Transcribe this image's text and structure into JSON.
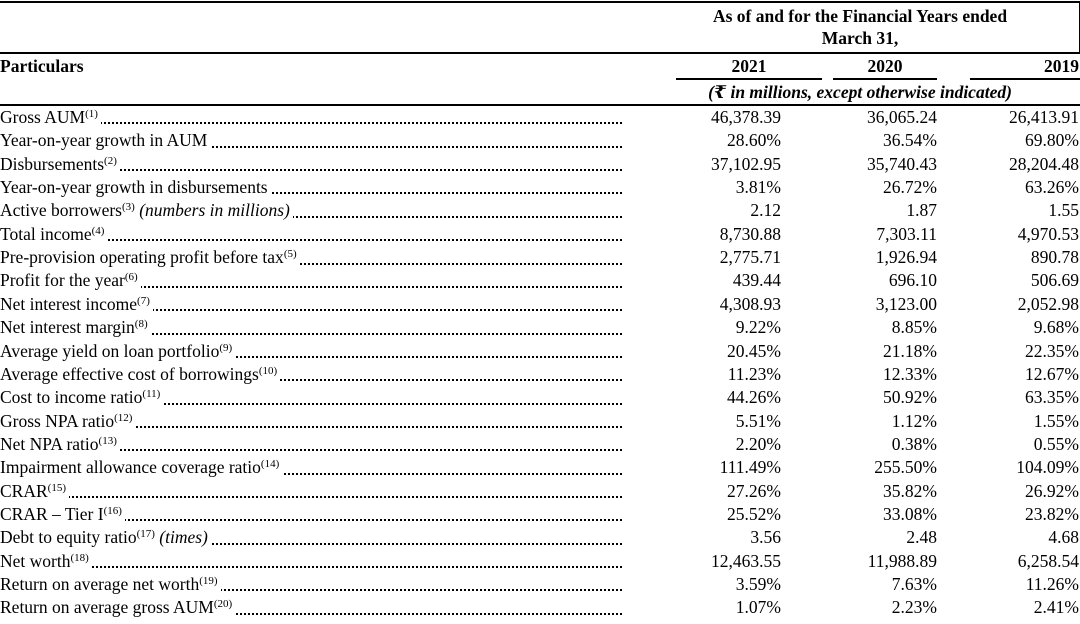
{
  "header": {
    "group_title_line1": "As of and for the Financial Years ended",
    "group_title_line2": "March 31,",
    "particulars_label": "Particulars",
    "years": [
      "2021",
      "2020",
      "2019"
    ],
    "unit_note": "(₹ in millions, except otherwise indicated)"
  },
  "rows": [
    {
      "label": "Gross AUM",
      "note": "(1)",
      "qualifier": "",
      "values": [
        "46,378.39",
        "36,065.24",
        "26,413.91"
      ]
    },
    {
      "label": "Year-on-year growth in AUM",
      "note": "",
      "qualifier": "",
      "values": [
        "28.60%",
        "36.54%",
        "69.80%"
      ]
    },
    {
      "label": "Disbursements",
      "note": "(2)",
      "qualifier": "",
      "values": [
        "37,102.95",
        "35,740.43",
        "28,204.48"
      ]
    },
    {
      "label": "Year-on-year growth in disbursements",
      "note": "",
      "qualifier": "",
      "values": [
        "3.81%",
        "26.72%",
        "63.26%"
      ]
    },
    {
      "label": "Active borrowers",
      "note": "(3)",
      "qualifier": "(numbers in millions)",
      "values": [
        "2.12",
        "1.87",
        "1.55"
      ]
    },
    {
      "label": "Total income",
      "note": "(4)",
      "qualifier": "",
      "values": [
        "8,730.88",
        "7,303.11",
        "4,970.53"
      ]
    },
    {
      "label": "Pre-provision operating profit before tax",
      "note": "(5)",
      "qualifier": "",
      "values": [
        "2,775.71",
        "1,926.94",
        "890.78"
      ]
    },
    {
      "label": "Profit for the year",
      "note": "(6)",
      "qualifier": "",
      "values": [
        "439.44",
        "696.10",
        "506.69"
      ]
    },
    {
      "label": "Net interest income",
      "note": "(7)",
      "qualifier": "",
      "values": [
        "4,308.93",
        "3,123.00",
        "2,052.98"
      ]
    },
    {
      "label": "Net interest margin",
      "note": "(8)",
      "qualifier": "",
      "values": [
        "9.22%",
        "8.85%",
        "9.68%"
      ]
    },
    {
      "label": "Average yield on loan portfolio",
      "note": "(9)",
      "qualifier": "",
      "values": [
        "20.45%",
        "21.18%",
        "22.35%"
      ]
    },
    {
      "label": "Average effective cost of borrowings",
      "note": "(10)",
      "qualifier": "",
      "values": [
        "11.23%",
        "12.33%",
        "12.67%"
      ]
    },
    {
      "label": "Cost to income ratio",
      "note": "(11)",
      "qualifier": "",
      "values": [
        "44.26%",
        "50.92%",
        "63.35%"
      ]
    },
    {
      "label": "Gross NPA ratio",
      "note": "(12)",
      "qualifier": "",
      "values": [
        "5.51%",
        "1.12%",
        "1.55%"
      ]
    },
    {
      "label": "Net NPA ratio",
      "note": "(13)",
      "qualifier": "",
      "values": [
        "2.20%",
        "0.38%",
        "0.55%"
      ]
    },
    {
      "label": "Impairment allowance coverage ratio",
      "note": "(14)",
      "qualifier": "",
      "values": [
        "111.49%",
        "255.50%",
        "104.09%"
      ]
    },
    {
      "label": "CRAR",
      "note": "(15)",
      "qualifier": "",
      "values": [
        "27.26%",
        "35.82%",
        "26.92%"
      ]
    },
    {
      "label": "CRAR – Tier I",
      "note": "(16)",
      "qualifier": "",
      "values": [
        "25.52%",
        "33.08%",
        "23.82%"
      ]
    },
    {
      "label": "Debt to equity ratio",
      "note": "(17)",
      "qualifier": "(times)",
      "values": [
        "3.56",
        "2.48",
        "4.68"
      ]
    },
    {
      "label": "Net worth",
      "note": "(18)",
      "qualifier": "",
      "values": [
        "12,463.55",
        "11,988.89",
        "6,258.54"
      ]
    },
    {
      "label": "Return on average net worth",
      "note": "(19)",
      "qualifier": "",
      "values": [
        "3.59%",
        "7.63%",
        "11.26%"
      ]
    },
    {
      "label": "Return on average gross AUM",
      "note": "(20)",
      "qualifier": "",
      "values": [
        "1.07%",
        "2.23%",
        "2.41%"
      ]
    }
  ]
}
